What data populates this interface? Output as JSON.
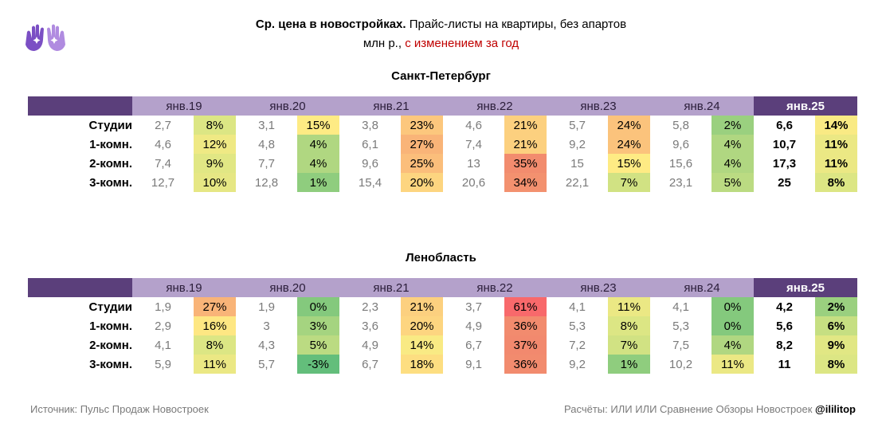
{
  "header": {
    "title_bold": "Ср. цена в новостройках.",
    "title_rest": " Прайс-листы на квартиры, без апартов",
    "subtitle_main": "млн р., ",
    "subtitle_red": "с изменением за год"
  },
  "colors": {
    "header_dark": "#5b3f7b",
    "header_light": "#b4a1cb"
  },
  "icons": {
    "logo": "hands-logo-icon"
  },
  "years": [
    "янв.19",
    "янв.20",
    "янв.21",
    "янв.22",
    "янв.23",
    "янв.24",
    "янв.25"
  ],
  "chart_data": [
    {
      "type": "table",
      "title": "Санкт-Петербург",
      "columns": [
        "янв.19",
        "янв.20",
        "янв.21",
        "янв.22",
        "янв.23",
        "янв.24",
        "янв.25"
      ],
      "rows": [
        {
          "label": "Студии",
          "prices": [
            "2,7",
            "3,1",
            "3,8",
            "4,6",
            "5,7",
            "5,8",
            "6,6"
          ],
          "changes": [
            "8%",
            "15%",
            "23%",
            "21%",
            "24%",
            "2%",
            "14%"
          ]
        },
        {
          "label": "1-комн.",
          "prices": [
            "4,6",
            "4,8",
            "6,1",
            "7,4",
            "9,2",
            "9,6",
            "10,7"
          ],
          "changes": [
            "12%",
            "4%",
            "27%",
            "21%",
            "24%",
            "4%",
            "11%"
          ]
        },
        {
          "label": "2-комн.",
          "prices": [
            "7,4",
            "7,7",
            "9,6",
            "13",
            "15",
            "15,6",
            "17,3"
          ],
          "changes": [
            "9%",
            "4%",
            "25%",
            "35%",
            "15%",
            "4%",
            "11%"
          ]
        },
        {
          "label": "3-комн.",
          "prices": [
            "12,7",
            "12,8",
            "15,4",
            "20,6",
            "22,1",
            "23,1",
            "25"
          ],
          "changes": [
            "10%",
            "1%",
            "20%",
            "34%",
            "7%",
            "5%",
            "8%"
          ]
        }
      ]
    },
    {
      "type": "table",
      "title": "Ленобласть",
      "columns": [
        "янв.19",
        "янв.20",
        "янв.21",
        "янв.22",
        "янв.23",
        "янв.24",
        "янв.25"
      ],
      "rows": [
        {
          "label": "Студии",
          "prices": [
            "1,9",
            "1,9",
            "2,3",
            "3,7",
            "4,1",
            "4,1",
            "4,2"
          ],
          "changes": [
            "27%",
            "0%",
            "21%",
            "61%",
            "11%",
            "0%",
            "2%"
          ]
        },
        {
          "label": "1-комн.",
          "prices": [
            "2,9",
            "3",
            "3,6",
            "4,9",
            "5,3",
            "5,3",
            "5,6"
          ],
          "changes": [
            "16%",
            "3%",
            "20%",
            "36%",
            "8%",
            "0%",
            "6%"
          ]
        },
        {
          "label": "2-комн.",
          "prices": [
            "4,1",
            "4,3",
            "4,9",
            "6,7",
            "7,2",
            "7,5",
            "8,2"
          ],
          "changes": [
            "8%",
            "5%",
            "14%",
            "37%",
            "7%",
            "4%",
            "9%"
          ]
        },
        {
          "label": "3-комн.",
          "prices": [
            "5,9",
            "5,7",
            "6,7",
            "9,1",
            "9,2",
            "10,2",
            "11"
          ],
          "changes": [
            "11%",
            "-3%",
            "18%",
            "36%",
            "1%",
            "11%",
            "8%"
          ]
        }
      ]
    }
  ],
  "footer": {
    "source": "Источник: Пульс Продаж Новостроек",
    "calc": "Расчёты: ИЛИ ИЛИ Сравнение Обзоры Новостроек ",
    "handle": "@ililitop"
  }
}
